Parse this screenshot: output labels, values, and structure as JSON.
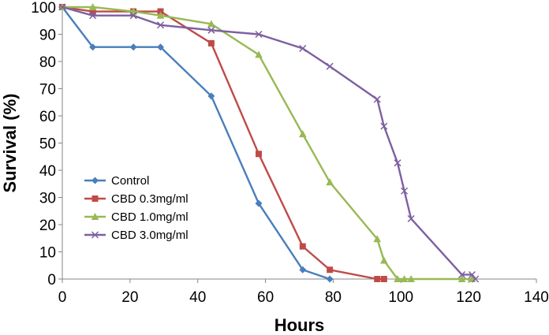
{
  "chart_data": {
    "type": "line",
    "title": "",
    "xlabel": "Hours",
    "ylabel": "Survival (%)",
    "xlim": [
      0,
      140
    ],
    "ylim": [
      0,
      100
    ],
    "x_ticks": [
      0,
      20,
      40,
      60,
      80,
      100,
      120,
      140
    ],
    "y_ticks": [
      0,
      10,
      20,
      30,
      40,
      50,
      60,
      70,
      80,
      90,
      100
    ],
    "grid": false,
    "legend_position": "bottom-left",
    "series": [
      {
        "name": "Control",
        "color": "#4a7ebb",
        "marker": "diamond",
        "points": [
          [
            0,
            100
          ],
          [
            9,
            85.3
          ],
          [
            21,
            85.3
          ],
          [
            29,
            85.3
          ],
          [
            44,
            67.3
          ],
          [
            58,
            27.8
          ],
          [
            71,
            3.4
          ],
          [
            79,
            0
          ]
        ]
      },
      {
        "name": "CBD 0.3mg/ml",
        "color": "#be4b48",
        "marker": "square",
        "points": [
          [
            0,
            100
          ],
          [
            9,
            98.4
          ],
          [
            21,
            98.4
          ],
          [
            29,
            98.4
          ],
          [
            44,
            86.7
          ],
          [
            58,
            46
          ],
          [
            71,
            12
          ],
          [
            79,
            3.4
          ],
          [
            93,
            0
          ],
          [
            95,
            0
          ]
        ]
      },
      {
        "name": "CBD 1.0mg/ml",
        "color": "#98b954",
        "marker": "triangle",
        "points": [
          [
            0,
            100
          ],
          [
            9,
            100
          ],
          [
            21,
            98.4
          ],
          [
            29,
            96.9
          ],
          [
            44,
            93.8
          ],
          [
            58,
            82.5
          ],
          [
            71,
            53.3
          ],
          [
            79,
            35.6
          ],
          [
            93,
            14.7
          ],
          [
            95,
            6.8
          ],
          [
            99,
            0
          ],
          [
            101,
            0
          ],
          [
            103,
            0
          ],
          [
            118,
            0
          ],
          [
            121,
            0
          ]
        ]
      },
      {
        "name": "CBD 3.0mg/ml",
        "color": "#7d60a0",
        "marker": "x",
        "points": [
          [
            0,
            100
          ],
          [
            9,
            96.9
          ],
          [
            21,
            96.9
          ],
          [
            29,
            93.4
          ],
          [
            44,
            91.5
          ],
          [
            58,
            90
          ],
          [
            71,
            84.8
          ],
          [
            79,
            78.2
          ],
          [
            93,
            66.1
          ],
          [
            95,
            56.2
          ],
          [
            99,
            42.7
          ],
          [
            101,
            32.4
          ],
          [
            103,
            22.2
          ],
          [
            118,
            1.6
          ],
          [
            121,
            1.6
          ],
          [
            122,
            0
          ]
        ]
      }
    ]
  }
}
